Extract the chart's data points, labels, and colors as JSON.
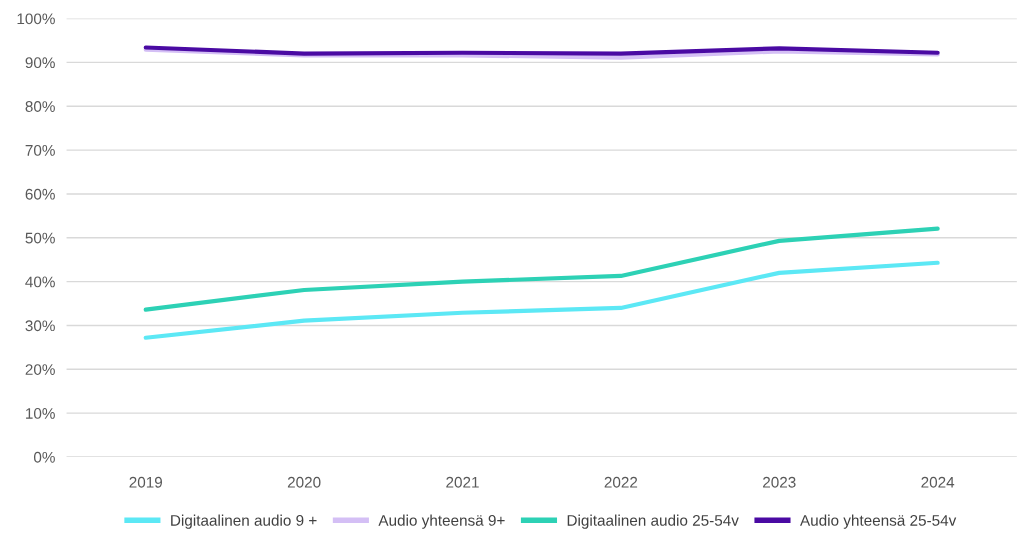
{
  "chart_data": {
    "type": "line",
    "categories": [
      "2019",
      "2020",
      "2021",
      "2022",
      "2023",
      "2024"
    ],
    "series": [
      {
        "name": "Digitaalinen audio 9 +",
        "color": "#5ce8f5",
        "values": [
          27.2,
          31.1,
          32.9,
          34.0,
          42.0,
          44.3
        ]
      },
      {
        "name": "Audio yhteensä 9+",
        "color": "#d4bff5",
        "values": [
          92.9,
          91.6,
          91.6,
          91.1,
          92.5,
          91.8
        ]
      },
      {
        "name": "Digitaalinen audio 25-54v",
        "color": "#2dd1b5",
        "values": [
          33.6,
          38.1,
          40.0,
          41.3,
          49.3,
          52.1
        ]
      },
      {
        "name": "Audio yhteensä 25-54v",
        "color": "#4a0aa3",
        "values": [
          93.4,
          92.0,
          92.2,
          92.0,
          93.2,
          92.2
        ]
      }
    ],
    "ylim": [
      0,
      100
    ],
    "yticks": [
      {
        "value": 0,
        "label": "0%"
      },
      {
        "value": 10,
        "label": "10%"
      },
      {
        "value": 20,
        "label": "20%"
      },
      {
        "value": 30,
        "label": "30%"
      },
      {
        "value": 40,
        "label": "40%"
      },
      {
        "value": 50,
        "label": "50%"
      },
      {
        "value": 60,
        "label": "60%"
      },
      {
        "value": 70,
        "label": "70%"
      },
      {
        "value": 80,
        "label": "80%"
      },
      {
        "value": 90,
        "label": "90%"
      },
      {
        "value": 100,
        "label": "100%"
      }
    ],
    "grid": "y",
    "legend": "bottom",
    "marker": "none",
    "line_style": "solid"
  }
}
